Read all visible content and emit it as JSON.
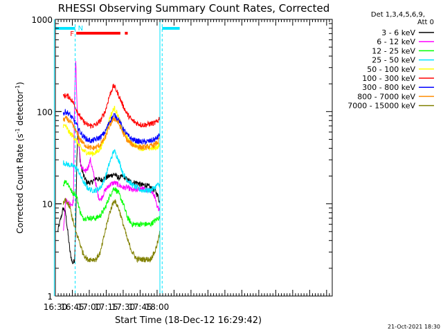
{
  "chart_data": {
    "type": "line",
    "title": "RHESSI Observing Summary Count Rates, Corrected",
    "xlabel": "Start Time (18-Dec-12 16:29:42)",
    "ylabel_main": "Corrected Count Rate (s",
    "ylabel_sup1": "-1",
    "ylabel_mid": " detector",
    "ylabel_sup2": "-1",
    "ylabel_end": ")",
    "yscale": "log",
    "xlim_min": [
      990,
      1235
    ],
    "ylim": [
      1,
      1000
    ],
    "xticks_min": [
      990,
      1005,
      1020,
      1035,
      1050,
      1065,
      1080
    ],
    "xtick_labels": [
      "16:30",
      "16:45",
      "17:00",
      "17:15",
      "17:30",
      "17:45",
      "18:00"
    ],
    "yticks": [
      1,
      10,
      100,
      1000
    ],
    "ytick_labels": [
      "1",
      "10",
      "100",
      "1000"
    ],
    "grid": false,
    "legend_header": [
      "Det 1,3,4,5,6,9,",
      "Att 0"
    ],
    "footer_date": "21-Oct-2021 18:30",
    "flags": {
      "F_label": "F",
      "N_label": "N",
      "flare_bars_min": [
        [
          1008.5,
          1047.5
        ],
        [
          1051.5,
          1054
        ]
      ],
      "night_bars_min": [
        [
          990,
          1007.5
        ],
        [
          1084.5,
          1100
        ]
      ],
      "night_dashed_min": [
        1007.5,
        1084.5
      ],
      "night_solid_min": [
        989,
        1082.5
      ]
    },
    "series": [
      {
        "name": "3 - 6 keV",
        "color": "#000000",
        "t": [
          992,
          997,
          999,
          1003,
          1005,
          1006,
          1007,
          1008,
          1009,
          1010,
          1012,
          1015,
          1018,
          1022,
          1026,
          1030,
          1034,
          1038,
          1042,
          1046,
          1050,
          1054,
          1058,
          1062,
          1066,
          1070,
          1074,
          1078,
          1081,
          1082.5
        ],
        "v": [
          5,
          9,
          8,
          3,
          2.3,
          2.3,
          2.5,
          6,
          30,
          65,
          28,
          20,
          17,
          17,
          19,
          18,
          19,
          20,
          21,
          19,
          20,
          18,
          17,
          17,
          16,
          16,
          15,
          14,
          12,
          10
        ]
      },
      {
        "name": "6 - 12 keV",
        "color": "#ff00ff",
        "t": [
          997,
          999,
          1003,
          1005,
          1006,
          1007,
          1008,
          1009,
          1010,
          1011,
          1013,
          1016,
          1019,
          1021,
          1023,
          1026,
          1028,
          1030,
          1034,
          1038,
          1042,
          1046,
          1050,
          1054,
          1058,
          1062,
          1066,
          1070,
          1074,
          1078,
          1080,
          1082.5
        ],
        "v": [
          5,
          11,
          10,
          10,
          11,
          150,
          360,
          140,
          60,
          40,
          25,
          22,
          25,
          30,
          23,
          16,
          12,
          11,
          14,
          16,
          17,
          16,
          15,
          15,
          14,
          14,
          15,
          14,
          14,
          12,
          9,
          9
        ]
      },
      {
        "name": "12 - 25 keV",
        "color": "#00ff00",
        "t": [
          997,
          999,
          1003,
          1005,
          1007,
          1009,
          1011,
          1014,
          1018,
          1022,
          1026,
          1030,
          1034,
          1038,
          1042,
          1046,
          1050,
          1054,
          1058,
          1062,
          1066,
          1070,
          1074,
          1078,
          1081,
          1082.5
        ],
        "v": [
          16,
          18,
          15,
          13,
          13,
          12,
          9,
          7,
          7,
          7,
          7,
          7.5,
          9,
          12,
          15,
          13,
          10,
          7,
          6,
          6,
          6,
          6,
          6,
          6.5,
          7,
          7
        ]
      },
      {
        "name": "25 - 50 keV",
        "color": "#00e5ff",
        "t": [
          997,
          1000,
          1004,
          1008,
          1011,
          1014,
          1018,
          1022,
          1026,
          1030,
          1034,
          1038,
          1042,
          1046,
          1050,
          1054,
          1058,
          1062,
          1066,
          1070,
          1074,
          1078,
          1080,
          1082.5
        ],
        "v": [
          28,
          27,
          26,
          25,
          22,
          18,
          15,
          14,
          14,
          15,
          19,
          28,
          38,
          30,
          21,
          18,
          16,
          15,
          14,
          14,
          14,
          15,
          16,
          16
        ]
      },
      {
        "name": "50 - 100 keV",
        "color": "#ffff00",
        "t": [
          997,
          999,
          1002,
          1005,
          1008,
          1011,
          1014,
          1018,
          1022,
          1026,
          1030,
          1034,
          1038,
          1042,
          1044,
          1046,
          1050,
          1054,
          1058,
          1062,
          1066,
          1070,
          1074,
          1078,
          1081,
          1082.5
        ],
        "v": [
          70,
          70,
          60,
          55,
          50,
          43,
          38,
          36,
          35,
          36,
          40,
          52,
          85,
          110,
          100,
          85,
          62,
          50,
          45,
          42,
          40,
          40,
          40,
          40,
          42,
          45
        ]
      },
      {
        "name": "100 - 300 keV",
        "color": "#ff0000",
        "t": [
          997,
          999,
          1002,
          1005,
          1008,
          1011,
          1014,
          1018,
          1022,
          1026,
          1030,
          1034,
          1038,
          1041,
          1042,
          1044,
          1046,
          1050,
          1054,
          1058,
          1062,
          1066,
          1070,
          1074,
          1078,
          1081,
          1082.5
        ],
        "v": [
          145,
          150,
          145,
          130,
          110,
          92,
          80,
          72,
          70,
          72,
          80,
          100,
          150,
          185,
          190,
          170,
          150,
          115,
          92,
          80,
          75,
          72,
          72,
          74,
          75,
          80,
          88
        ]
      },
      {
        "name": "300 - 800 keV",
        "color": "#0000ff",
        "t": [
          997,
          999,
          1002,
          1005,
          1008,
          1011,
          1014,
          1018,
          1022,
          1026,
          1030,
          1034,
          1038,
          1042,
          1046,
          1050,
          1054,
          1058,
          1062,
          1066,
          1070,
          1074,
          1078,
          1081,
          1082.5
        ],
        "v": [
          95,
          100,
          95,
          85,
          75,
          63,
          55,
          50,
          48,
          50,
          53,
          60,
          78,
          92,
          82,
          65,
          55,
          50,
          48,
          47,
          47,
          48,
          50,
          53,
          58
        ]
      },
      {
        "name": "800 - 7000 keV",
        "color": "#ff8c00",
        "t": [
          997,
          999,
          1002,
          1005,
          1008,
          1011,
          1014,
          1018,
          1022,
          1026,
          1030,
          1034,
          1038,
          1042,
          1046,
          1050,
          1054,
          1058,
          1062,
          1066,
          1070,
          1074,
          1078,
          1081,
          1082.5
        ],
        "v": [
          80,
          85,
          80,
          72,
          62,
          52,
          46,
          42,
          40,
          41,
          44,
          52,
          70,
          85,
          75,
          58,
          48,
          44,
          42,
          41,
          41,
          42,
          44,
          47,
          52
        ]
      },
      {
        "name": "7000 - 15000 keV",
        "color": "#808000",
        "t": [
          997,
          999,
          1003,
          1005,
          1008,
          1011,
          1014,
          1018,
          1022,
          1026,
          1030,
          1034,
          1038,
          1042,
          1046,
          1050,
          1054,
          1058,
          1062,
          1066,
          1070,
          1074,
          1078,
          1081,
          1082.5
        ],
        "v": [
          10,
          11,
          9,
          7,
          5,
          4,
          3,
          2.5,
          2.5,
          2.5,
          3,
          5,
          8,
          11,
          9,
          6,
          4,
          3,
          2.5,
          2.5,
          2.5,
          2.5,
          3,
          4,
          5
        ]
      }
    ]
  }
}
